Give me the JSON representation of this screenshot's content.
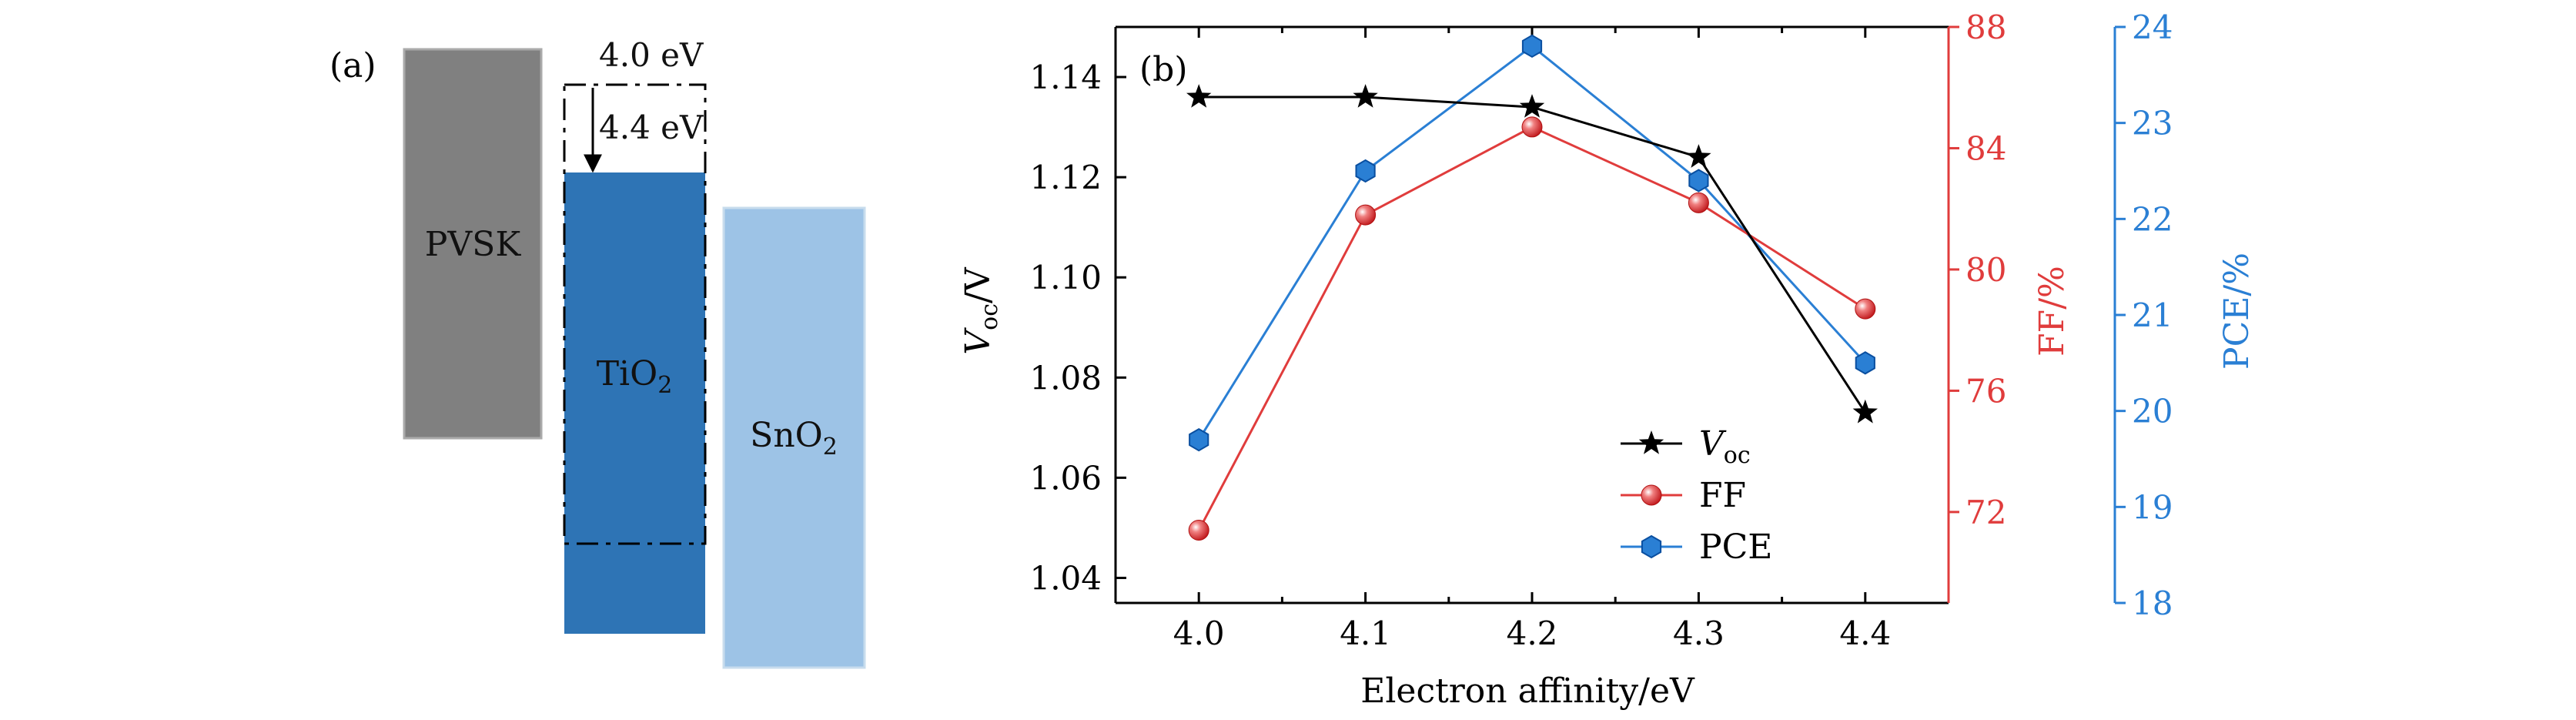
{
  "panel_a": {
    "label": "(a)",
    "blocks": [
      {
        "name": "PVSK",
        "label": "PVSK",
        "color": "#808080"
      },
      {
        "name": "TiO2",
        "label_main": "TiO",
        "label_sub": "2",
        "color": "#2e74b5"
      },
      {
        "name": "SnO2",
        "label_main": "SnO",
        "label_sub": "2",
        "color": "#9dc3e6"
      }
    ],
    "annotation_top": "4.0 eV",
    "annotation_arrow": "4.4 eV"
  },
  "panel_b": {
    "label": "(b)"
  },
  "chart_data": {
    "type": "line",
    "title": "",
    "xlabel": "Electron affinity/eV",
    "x": [
      4.0,
      4.1,
      4.2,
      4.3,
      4.4
    ],
    "x_ticks": [
      "4.0",
      "4.1",
      "4.2",
      "4.3",
      "4.4"
    ],
    "xlim": [
      3.95,
      4.45
    ],
    "axes": {
      "left": {
        "label_main": "V",
        "label_sub": "oc",
        "label_tail": "/V",
        "ylim": [
          1.035,
          1.15
        ],
        "ticks": [
          "1.04",
          "1.06",
          "1.08",
          "1.10",
          "1.12",
          "1.14"
        ],
        "color": "#000000"
      },
      "right1": {
        "label": "FF/%",
        "ylim": [
          69,
          88
        ],
        "ticks": [
          "72",
          "76",
          "80",
          "84",
          "88"
        ],
        "color": "#e03c3c"
      },
      "right2": {
        "label": "PCE/%",
        "ylim": [
          18,
          24
        ],
        "ticks": [
          "18",
          "19",
          "20",
          "21",
          "22",
          "23",
          "24"
        ],
        "color": "#2a7fd4"
      }
    },
    "series": [
      {
        "name_main": "V",
        "name_sub": "oc",
        "axis": "left",
        "values": [
          1.136,
          1.136,
          1.134,
          1.124,
          1.073
        ],
        "color": "#000000",
        "marker": "star"
      },
      {
        "name_main": "FF",
        "name_sub": "",
        "axis": "right1",
        "values": [
          71.4,
          81.8,
          84.7,
          82.2,
          78.7
        ],
        "color": "#e03c3c",
        "marker": "sphere"
      },
      {
        "name_main": "PCE",
        "name_sub": "",
        "axis": "right2",
        "values": [
          19.7,
          22.5,
          23.8,
          22.4,
          20.5
        ],
        "color": "#2a7fd4",
        "marker": "hexagon"
      }
    ],
    "legend_position": "lower-right",
    "grid": false
  }
}
